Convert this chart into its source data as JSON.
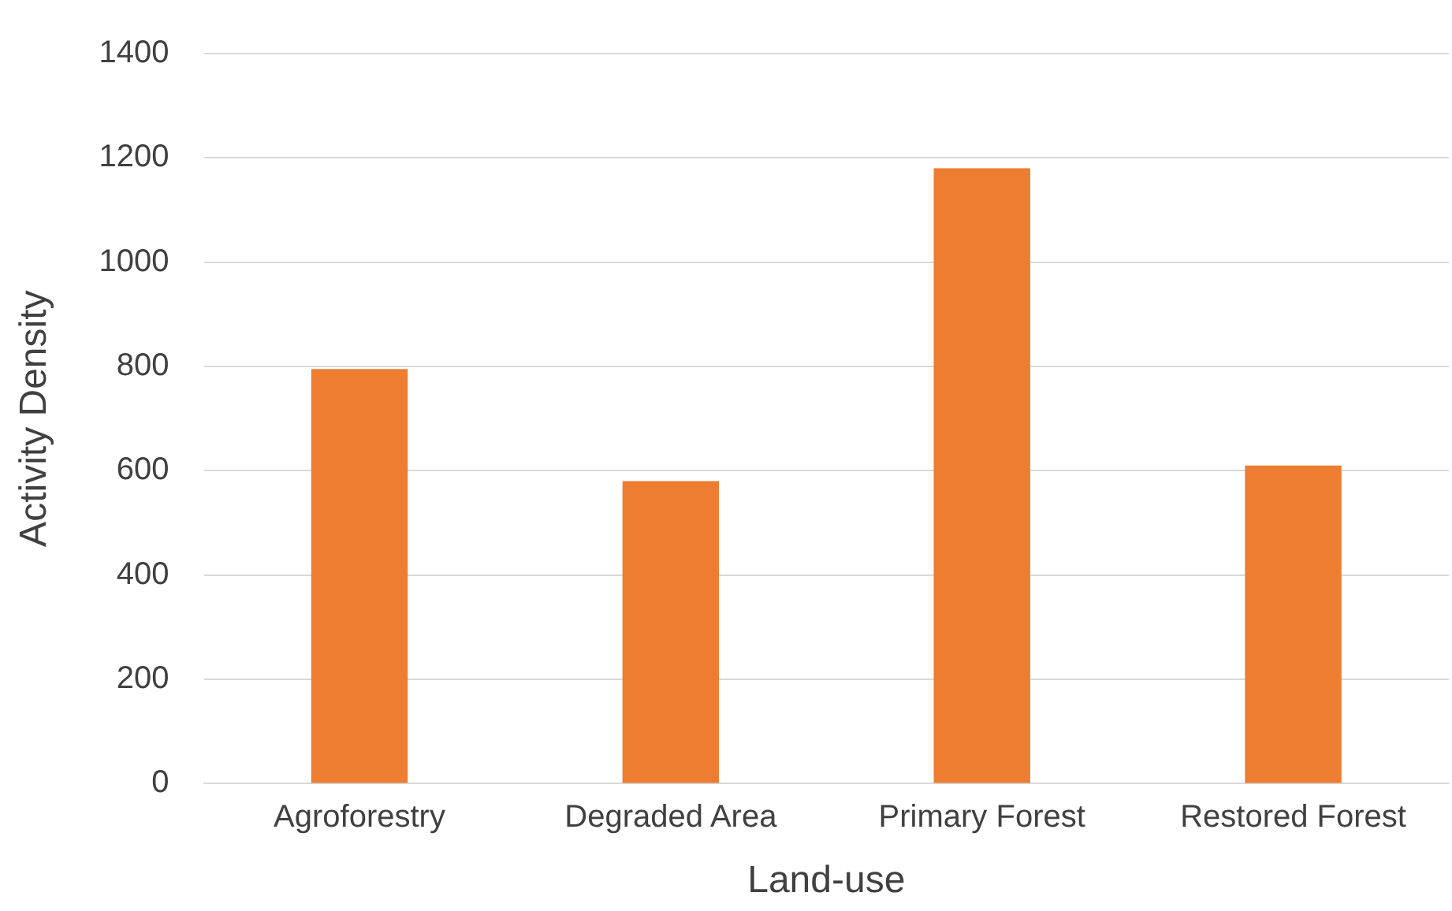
{
  "chart_data": {
    "type": "bar",
    "xlabel": "Land-use",
    "ylabel": "Activity Density",
    "categories": [
      "Agroforestry",
      "Degraded Area",
      "Primary Forest",
      "Restored Forest"
    ],
    "values": [
      795,
      580,
      1180,
      610
    ],
    "color": "#ed7d31",
    "ylim": [
      0,
      1400
    ],
    "yticks": [
      0,
      200,
      400,
      600,
      800,
      1000,
      1200,
      1400
    ],
    "grid": "y",
    "legend": false
  }
}
